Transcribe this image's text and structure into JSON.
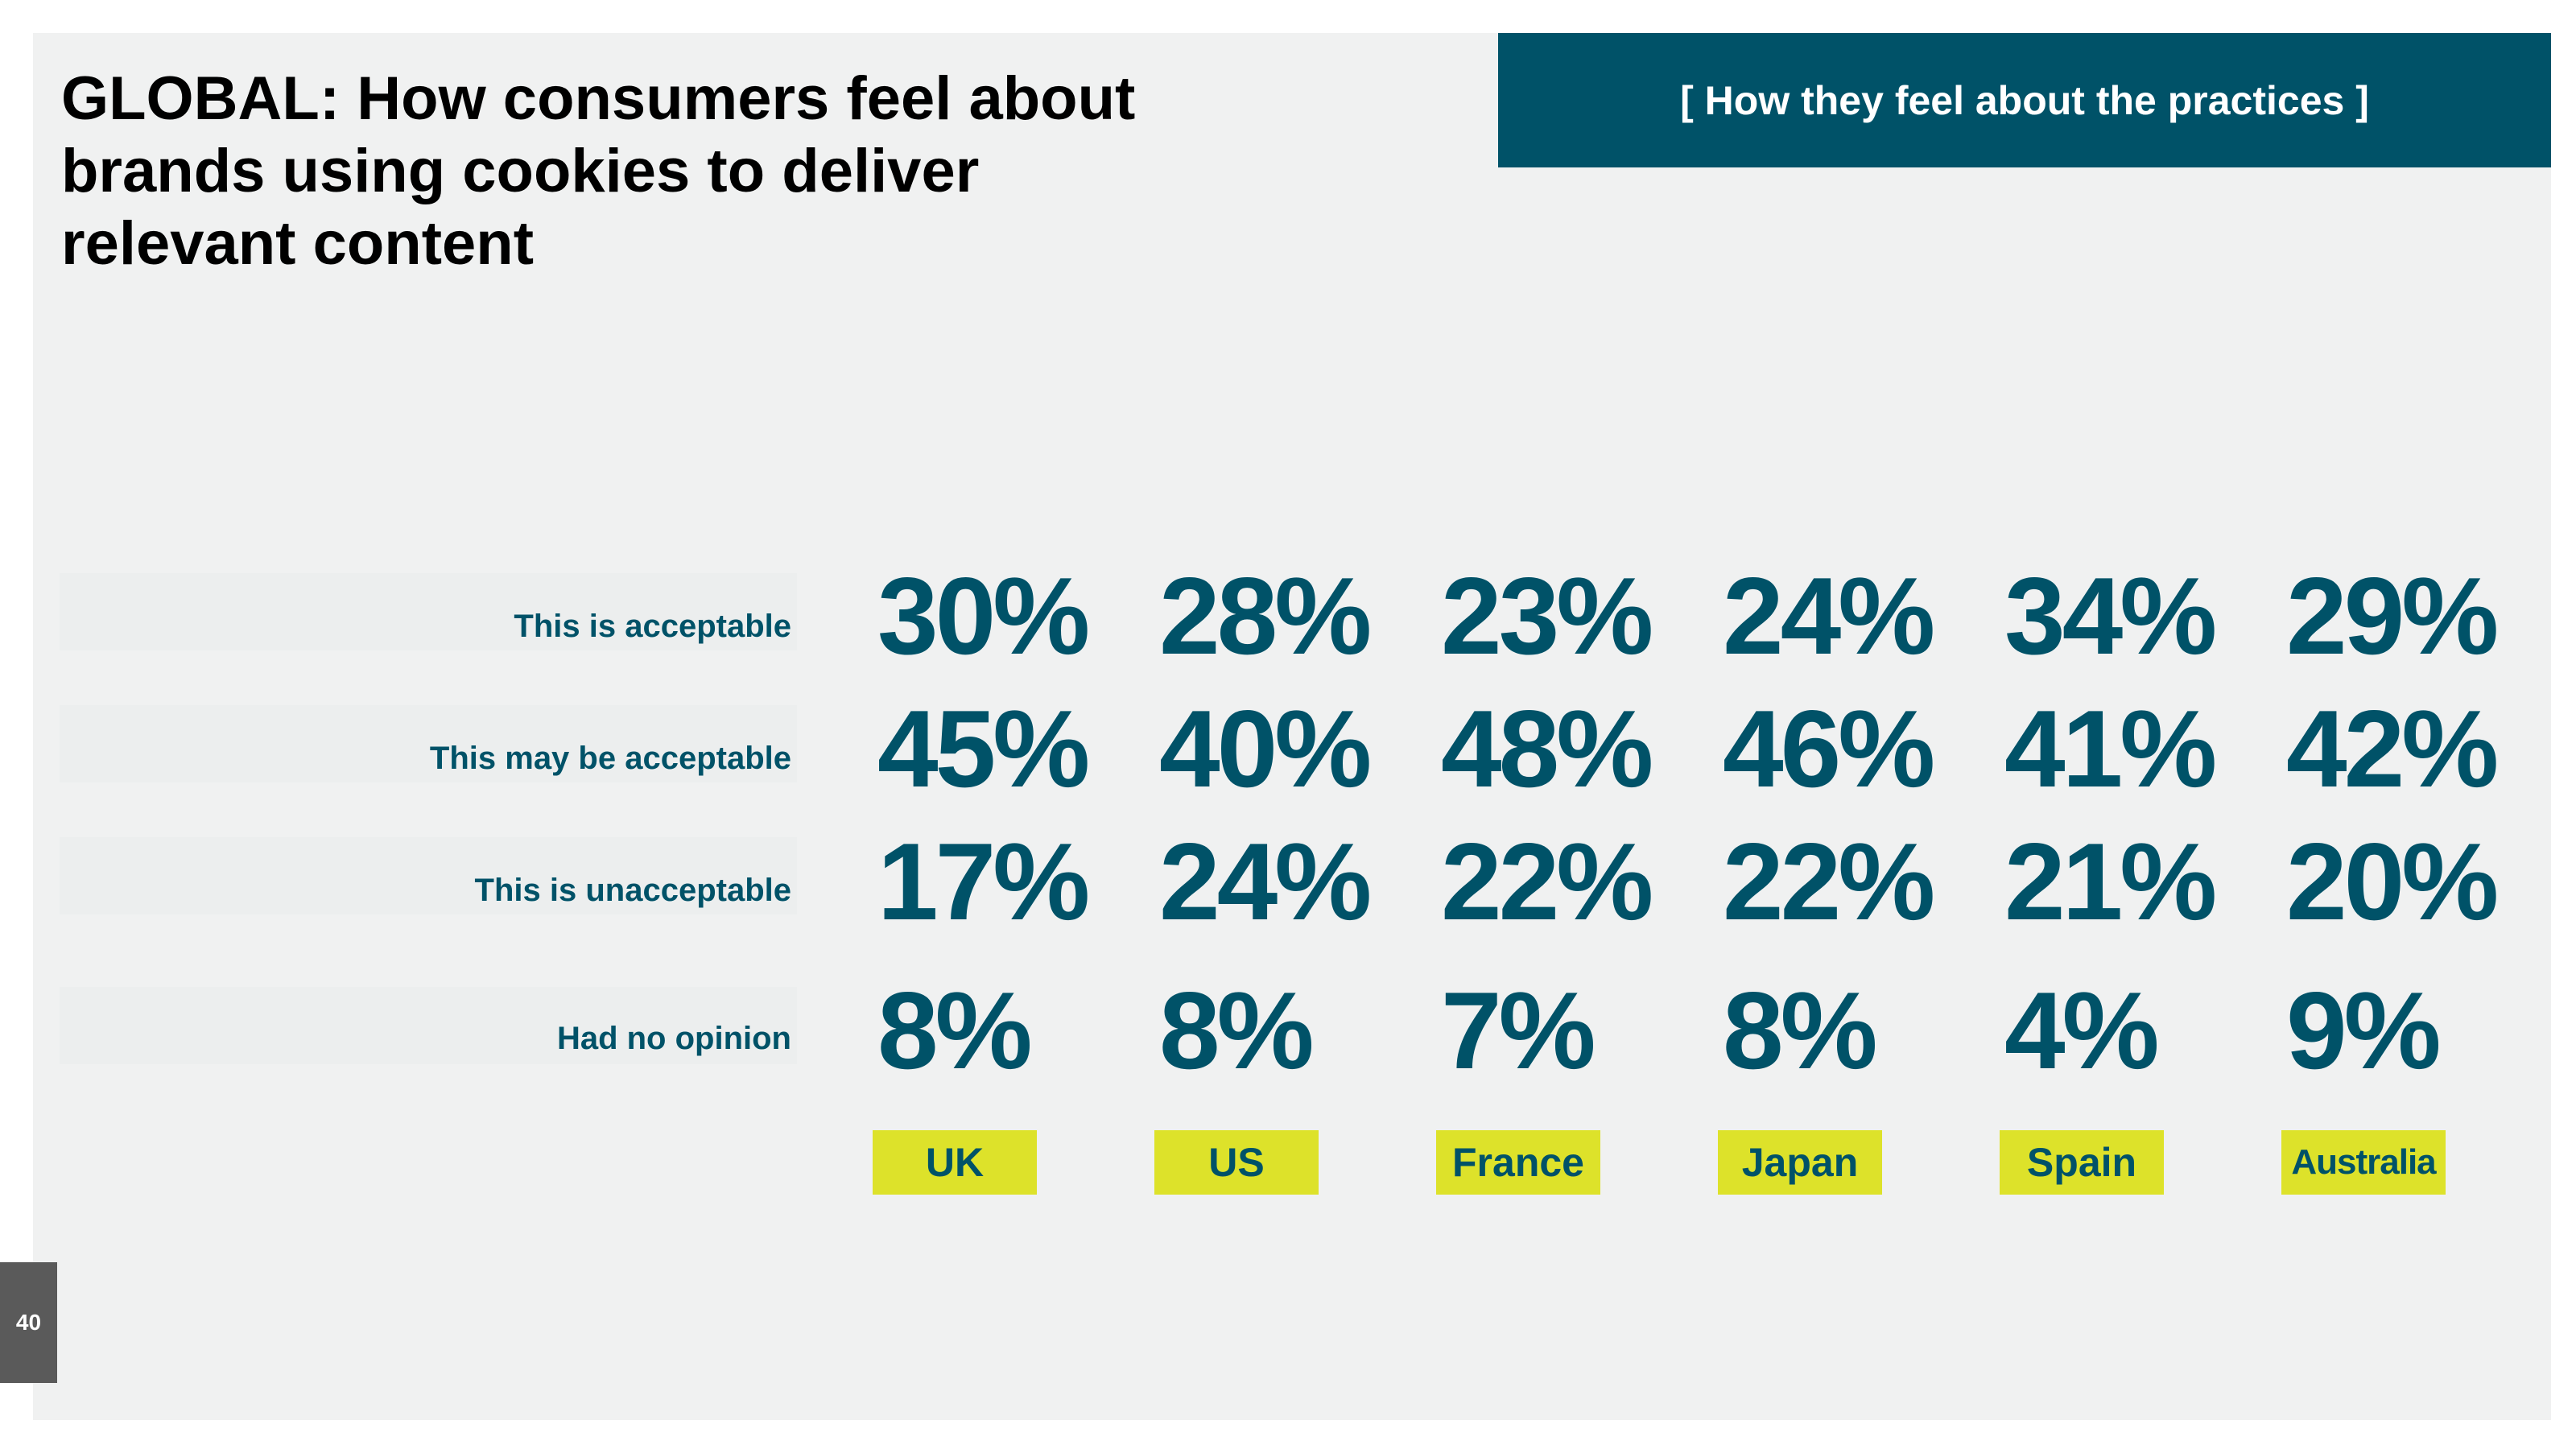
{
  "slide": {
    "title": "GLOBAL: How consumers feel about brands using cookies to deliver relevant content",
    "section_banner": "[ How they feel about the practices ]",
    "page_number": "40"
  },
  "chart_data": {
    "type": "table",
    "title": "GLOBAL: How consumers feel about brands using cookies to deliver relevant content",
    "categories": [
      "UK",
      "US",
      "France",
      "Japan",
      "Spain",
      "Australia"
    ],
    "rows": [
      {
        "label": "This is acceptable",
        "display": [
          "30%",
          "28%",
          "23%",
          "24%",
          "34%",
          "29%"
        ],
        "values": [
          30,
          28,
          23,
          24,
          34,
          29
        ]
      },
      {
        "label": "This may be acceptable",
        "display": [
          "45%",
          "40%",
          "48%",
          "46%",
          "41%",
          "42%"
        ],
        "values": [
          45,
          40,
          48,
          46,
          41,
          42
        ]
      },
      {
        "label": "This is unacceptable",
        "display": [
          "17%",
          "24%",
          "22%",
          "22%",
          "21%",
          "20%"
        ],
        "values": [
          17,
          24,
          22,
          22,
          21,
          20
        ]
      },
      {
        "label": "Had no opinion",
        "display": [
          "8%",
          "8%",
          "7%",
          "8%",
          "4%",
          "9%"
        ],
        "values": [
          8,
          8,
          7,
          8,
          4,
          9
        ]
      }
    ],
    "colors": {
      "value_text": "#005268",
      "country_badge": "#dde22a",
      "banner": "#005268"
    }
  }
}
